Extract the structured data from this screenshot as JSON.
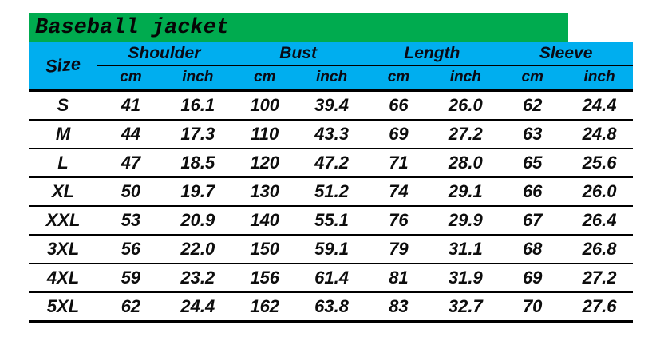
{
  "title": "Baseball jacket",
  "colors": {
    "title_bar_green": "#00AB4F",
    "header_blue": "#00AEEF",
    "line_black": "#000000",
    "text_dark": "#0d0d0d"
  },
  "chart_data": {
    "type": "table",
    "title": "Baseball jacket",
    "size_column_header": "Size",
    "measure_groups": [
      "Shoulder",
      "Bust",
      "Length",
      "Sleeve"
    ],
    "unit_labels": [
      "cm",
      "inch",
      "cm",
      "inch",
      "cm",
      "inch",
      "cm",
      "inch"
    ],
    "rows": [
      {
        "size": "S",
        "values": [
          "41",
          "16.1",
          "100",
          "39.4",
          "66",
          "26.0",
          "62",
          "24.4"
        ]
      },
      {
        "size": "M",
        "values": [
          "44",
          "17.3",
          "110",
          "43.3",
          "69",
          "27.2",
          "63",
          "24.8"
        ]
      },
      {
        "size": "L",
        "values": [
          "47",
          "18.5",
          "120",
          "47.2",
          "71",
          "28.0",
          "65",
          "25.6"
        ]
      },
      {
        "size": "XL",
        "values": [
          "50",
          "19.7",
          "130",
          "51.2",
          "74",
          "29.1",
          "66",
          "26.0"
        ]
      },
      {
        "size": "XXL",
        "values": [
          "53",
          "20.9",
          "140",
          "55.1",
          "76",
          "29.9",
          "67",
          "26.4"
        ]
      },
      {
        "size": "3XL",
        "values": [
          "56",
          "22.0",
          "150",
          "59.1",
          "79",
          "31.1",
          "68",
          "26.8"
        ]
      },
      {
        "size": "4XL",
        "values": [
          "59",
          "23.2",
          "156",
          "61.4",
          "81",
          "31.9",
          "69",
          "27.2"
        ]
      },
      {
        "size": "5XL",
        "values": [
          "62",
          "24.4",
          "162",
          "63.8",
          "83",
          "32.7",
          "70",
          "27.6"
        ]
      }
    ]
  }
}
